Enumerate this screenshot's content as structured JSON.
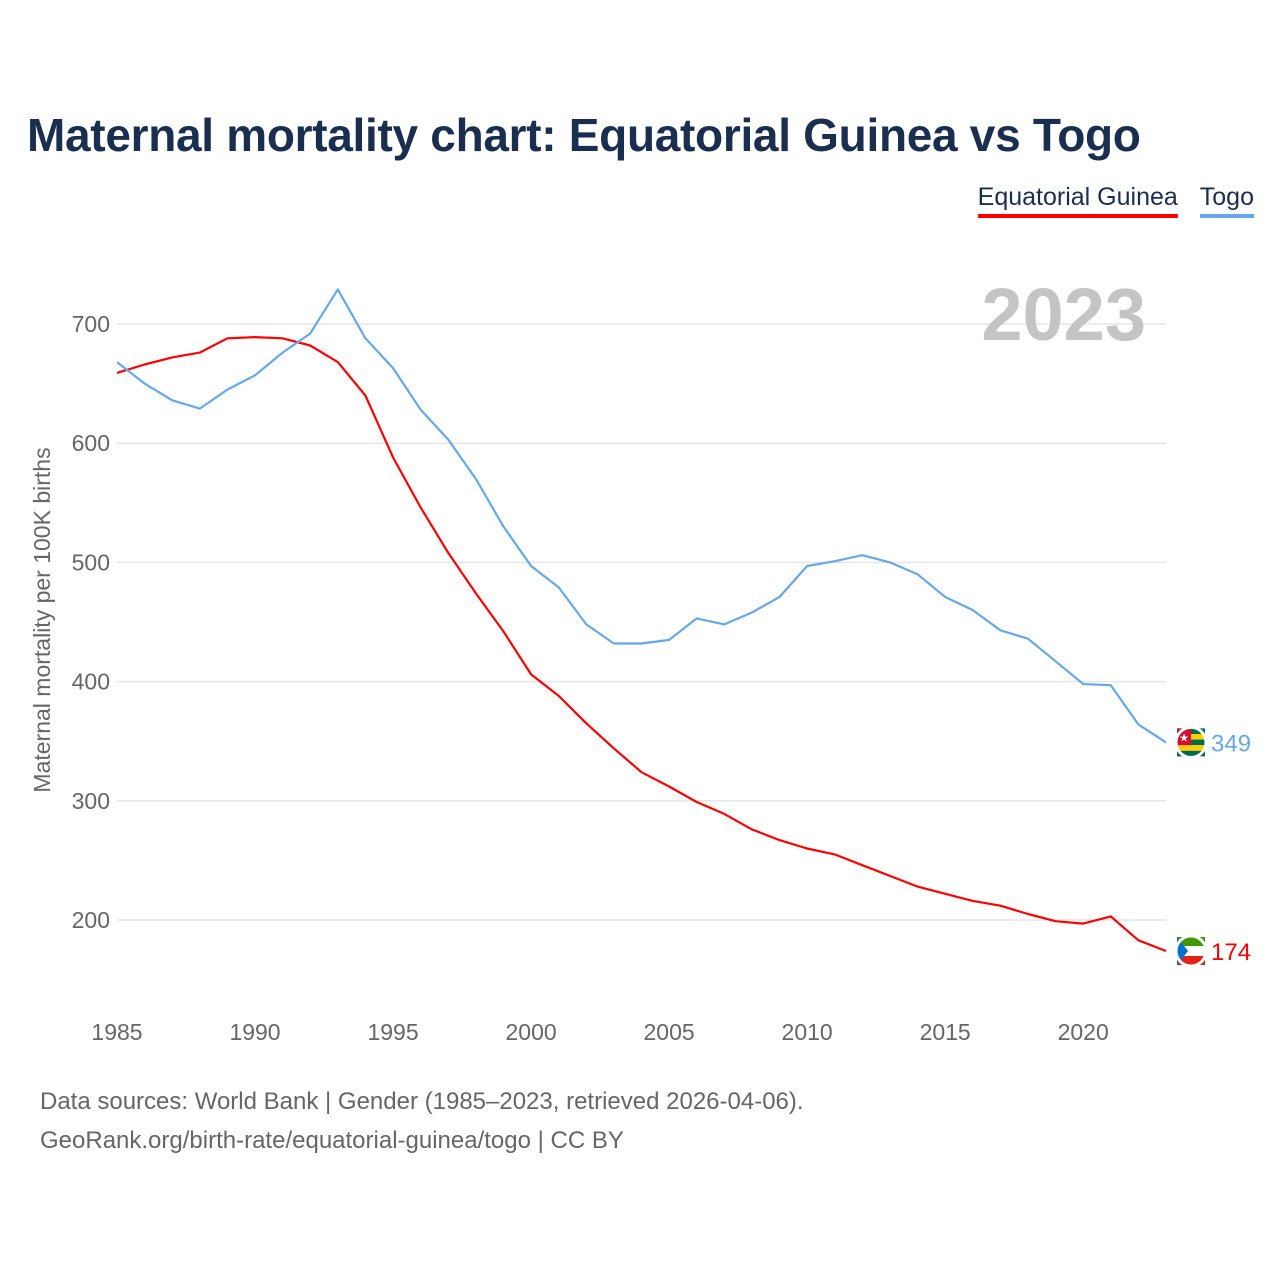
{
  "chart_data": {
    "type": "line",
    "title": "Maternal mortality chart: Equatorial Guinea vs Togo",
    "xlabel": "",
    "ylabel": "Maternal mortality per 100K births",
    "xlim": [
      1985,
      2023
    ],
    "ylim": [
      140,
      740
    ],
    "yticks": [
      200,
      300,
      400,
      500,
      600,
      700
    ],
    "xticks": [
      1985,
      1990,
      1995,
      2000,
      2005,
      2010,
      2015,
      2020
    ],
    "grid": true,
    "legend_position": "top-right",
    "year_label": "2023",
    "x": [
      1985,
      1986,
      1987,
      1988,
      1989,
      1990,
      1991,
      1992,
      1993,
      1994,
      1995,
      1996,
      1997,
      1998,
      1999,
      2000,
      2001,
      2002,
      2003,
      2004,
      2005,
      2006,
      2007,
      2008,
      2009,
      2010,
      2011,
      2012,
      2013,
      2014,
      2015,
      2016,
      2017,
      2018,
      2019,
      2020,
      2021,
      2022,
      2023
    ],
    "series": [
      {
        "name": "Equatorial Guinea",
        "color": "#ff0000",
        "end_label": "174",
        "values": [
          659,
          666,
          672,
          676,
          688,
          689,
          688,
          682,
          668,
          640,
          588,
          546,
          508,
          474,
          442,
          406,
          388,
          365,
          344,
          324,
          312,
          299,
          289,
          276,
          267,
          260,
          255,
          246,
          237,
          228,
          222,
          216,
          212,
          205,
          199,
          197,
          203,
          183,
          174
        ]
      },
      {
        "name": "Togo",
        "color": "#66a8ea",
        "end_label": "349",
        "values": [
          668,
          650,
          636,
          629,
          645,
          657,
          676,
          692,
          729,
          688,
          663,
          628,
          603,
          570,
          530,
          497,
          479,
          448,
          432,
          432,
          435,
          453,
          448,
          458,
          471,
          497,
          501,
          506,
          500,
          490,
          471,
          460,
          443,
          436,
          417,
          398,
          397,
          364,
          349
        ]
      }
    ]
  },
  "footer": {
    "line1": "Data sources: World Bank | Gender (1985–2023, retrieved 2026-04-06).",
    "line2": "GeoRank.org/birth-rate/equatorial-guinea/togo | CC BY"
  }
}
